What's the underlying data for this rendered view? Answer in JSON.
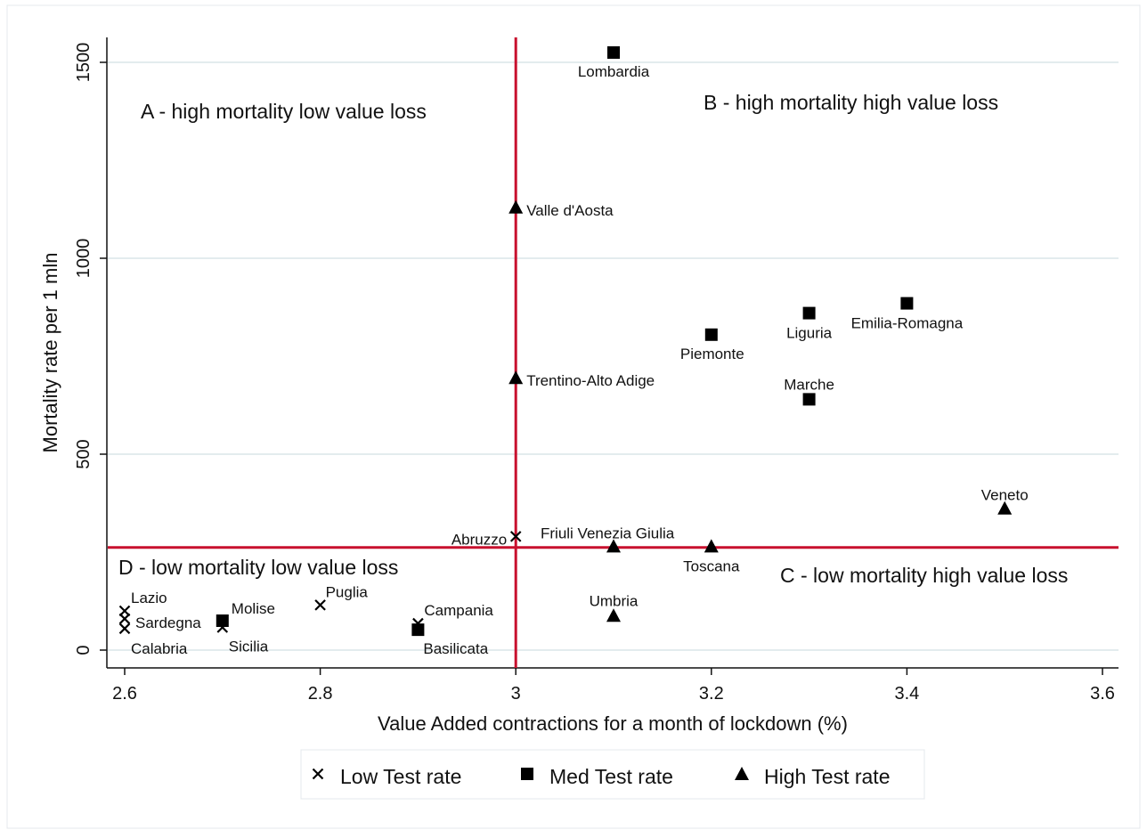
{
  "chart_data": {
    "type": "scatter",
    "xlabel": "Value Added contractions for a month of lockdown (%)",
    "ylabel": "Mortality rate per 1 mln",
    "xlim": [
      2.6,
      3.62
    ],
    "ylim": [
      -40,
      1560
    ],
    "x_ticks": [
      "2.6",
      "2.8",
      "3",
      "3.2",
      "3.4",
      "3.6"
    ],
    "y_ticks": [
      "0",
      "500",
      "1000",
      "1500"
    ],
    "grid": true,
    "reference_lines": {
      "x": 3.0,
      "y": 262,
      "color": "#c8102e"
    },
    "quadrant_labels": {
      "A": "A - high mortality low value loss",
      "B": "B - high mortality high value loss",
      "C": "C - low mortality high value loss",
      "D": "D - low mortality low value loss"
    },
    "legend": {
      "position": "bottom",
      "items": [
        {
          "marker": "cross",
          "label": "Low Test rate"
        },
        {
          "marker": "square",
          "label": "Med Test rate"
        },
        {
          "marker": "triangle",
          "label": "High Test rate"
        }
      ]
    },
    "points": [
      {
        "label": "Lombardia",
        "x": 3.1,
        "y": 1525,
        "marker": "square"
      },
      {
        "label": "Valle d'Aosta",
        "x": 3.0,
        "y": 1130,
        "marker": "triangle"
      },
      {
        "label": "Emilia-Romagna",
        "x": 3.4,
        "y": 885,
        "marker": "square"
      },
      {
        "label": "Liguria",
        "x": 3.3,
        "y": 860,
        "marker": "square"
      },
      {
        "label": "Piemonte",
        "x": 3.2,
        "y": 805,
        "marker": "square"
      },
      {
        "label": "Trentino-Alto Adige",
        "x": 3.0,
        "y": 695,
        "marker": "triangle"
      },
      {
        "label": "Marche",
        "x": 3.3,
        "y": 640,
        "marker": "square"
      },
      {
        "label": "Veneto",
        "x": 3.5,
        "y": 362,
        "marker": "triangle"
      },
      {
        "label": "Abruzzo",
        "x": 3.0,
        "y": 290,
        "marker": "cross"
      },
      {
        "label": "Friuli Venezia Giulia",
        "x": 3.1,
        "y": 265,
        "marker": "triangle"
      },
      {
        "label": "Toscana",
        "x": 3.2,
        "y": 265,
        "marker": "triangle"
      },
      {
        "label": "Lazio",
        "x": 2.6,
        "y": 100,
        "marker": "cross"
      },
      {
        "label": "Sardegna",
        "x": 2.6,
        "y": 80,
        "marker": "cross"
      },
      {
        "label": "Calabria",
        "x": 2.6,
        "y": 55,
        "marker": "cross"
      },
      {
        "label": "Molise",
        "x": 2.7,
        "y": 75,
        "marker": "square"
      },
      {
        "label": "Sicilia",
        "x": 2.7,
        "y": 58,
        "marker": "cross"
      },
      {
        "label": "Puglia",
        "x": 2.8,
        "y": 115,
        "marker": "cross"
      },
      {
        "label": "Campania",
        "x": 2.9,
        "y": 68,
        "marker": "cross"
      },
      {
        "label": "Basilicata",
        "x": 2.9,
        "y": 52,
        "marker": "square"
      },
      {
        "label": "Umbria",
        "x": 3.1,
        "y": 88,
        "marker": "triangle"
      }
    ]
  }
}
